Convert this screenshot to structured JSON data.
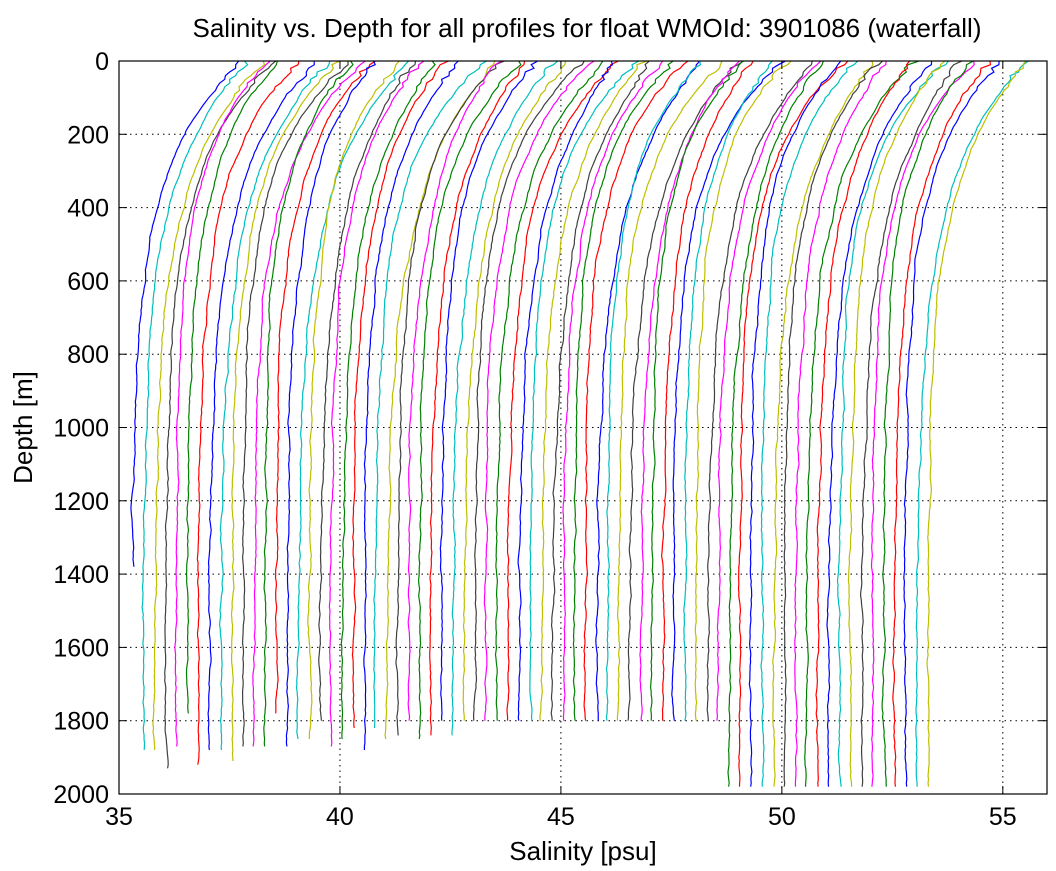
{
  "chart_data": {
    "type": "line",
    "title": "Salinity vs. Depth for all profiles for float WMOId: 3901086 (waterfall)",
    "xlabel": "Salinity [psu]",
    "ylabel": "Depth [m]",
    "xlim": [
      35,
      56
    ],
    "ylim": [
      0,
      2000
    ],
    "y_reversed": true,
    "grid": "dotted",
    "x_ticks": [
      35,
      40,
      45,
      50,
      55
    ],
    "x_tick_labels": [
      "35",
      "40",
      "45",
      "50",
      "55"
    ],
    "y_ticks": [
      0,
      200,
      400,
      600,
      800,
      1000,
      1200,
      1400,
      1600,
      1800,
      2000
    ],
    "y_tick_labels": [
      "0",
      "200",
      "400",
      "600",
      "800",
      "1000",
      "1200",
      "1400",
      "1600",
      "1800",
      "2000"
    ],
    "color_cycle": [
      "#0000ff",
      "#00bfbf",
      "#bfbf00",
      "#404040",
      "#ff00ff",
      "#008000",
      "#ff0000"
    ],
    "profile_count": 73,
    "profile_spacing_psu": 0.25,
    "first_profile_deep_salinity": 35.3,
    "first_profile_surface_salinity": 37.5,
    "profile_max_depths": [
      1380,
      1880,
      1880,
      1930,
      1870,
      1780,
      1920,
      1880,
      1880,
      1910,
      1870,
      1870,
      1870,
      1780,
      1870,
      1850,
      1850,
      1800,
      1870,
      1850,
      1820,
      1880,
      1820,
      1850,
      1840,
      1800,
      1850,
      1840,
      1800,
      1840,
      1800,
      1800,
      1800,
      1800,
      1800,
      1800,
      1800,
      1800,
      1800,
      1800,
      1800,
      1800,
      1800,
      1800,
      1800,
      1800,
      1800,
      1800,
      1800,
      1800,
      1800,
      1800,
      1800,
      1800,
      1980,
      1980,
      1980,
      1980,
      1980,
      1980,
      1980,
      1980,
      1980,
      1980,
      1980,
      1980,
      1980,
      1980,
      1980,
      1980,
      1980,
      1980,
      1980
    ],
    "note_offsets": "waterfall"
  }
}
